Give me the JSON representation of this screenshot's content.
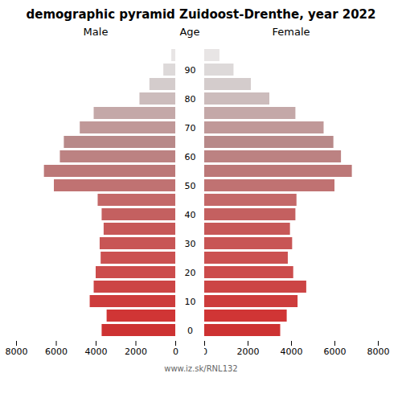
{
  "chart_data": {
    "type": "pyramid",
    "title": "demographic pyramid Zuidoost-Drenthe, year 2022",
    "orientation": "horizontal",
    "ylabel": "Age",
    "caption": "www.iz.sk/RNL132",
    "categories": [
      "0",
      null,
      "10",
      null,
      "20",
      null,
      "30",
      null,
      "40",
      null,
      "50",
      null,
      "60",
      null,
      "70",
      null,
      "80",
      null,
      "90",
      null
    ],
    "series": [
      {
        "name": "Male",
        "values": [
          3700,
          3450,
          4300,
          4100,
          4000,
          3750,
          3800,
          3600,
          3700,
          3900,
          6100,
          6600,
          5800,
          5600,
          4800,
          4100,
          1800,
          1300,
          600,
          200
        ]
      },
      {
        "name": "Female",
        "values": [
          3500,
          3800,
          4300,
          4700,
          4100,
          3850,
          4050,
          3950,
          4200,
          4250,
          6000,
          6800,
          6300,
          5950,
          5500,
          4200,
          3000,
          2150,
          1350,
          700
        ]
      }
    ],
    "colors": [
      "#cd3232",
      "#d03535",
      "#cd3c3c",
      "#cc4545",
      "#cc4c4c",
      "#cb5151",
      "#c85555",
      "#c75858",
      "#c46060",
      "#c46868",
      "#c07272",
      "#bc7878",
      "#bc8282",
      "#b88989",
      "#c09898",
      "#c4a8a8",
      "#ccbcbc",
      "#d4cccc",
      "#ddd9d9",
      "#e8e5e5"
    ],
    "xlim": [
      0,
      8000
    ],
    "xticks": [
      0,
      2000,
      4000,
      6000,
      8000
    ],
    "grid": false
  }
}
